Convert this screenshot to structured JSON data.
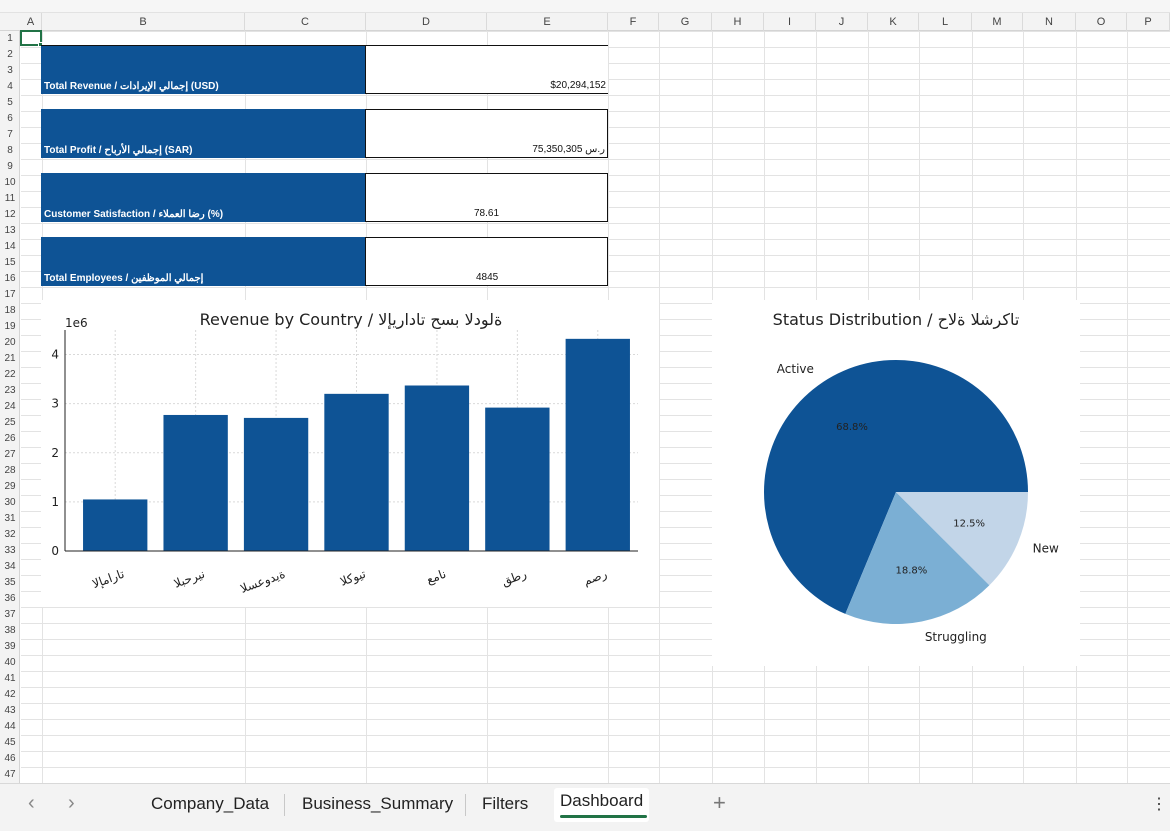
{
  "columns": [
    "A",
    "B",
    "C",
    "D",
    "E",
    "F",
    "G",
    "H",
    "I",
    "J",
    "K",
    "L",
    "M",
    "N",
    "O",
    "P"
  ],
  "rows": [
    "1",
    "2",
    "3",
    "4",
    "5",
    "6",
    "7",
    "8",
    "9",
    "10",
    "11",
    "12",
    "13",
    "14",
    "15",
    "16",
    "17",
    "18",
    "19",
    "20",
    "21",
    "22",
    "23",
    "24",
    "25",
    "26",
    "27",
    "28",
    "29",
    "30",
    "31",
    "32",
    "33",
    "34",
    "35",
    "36",
    "37",
    "38",
    "39",
    "40",
    "41",
    "42",
    "43",
    "44",
    "45",
    "46",
    "47"
  ],
  "kpis": {
    "revenue": {
      "label": "Total Revenue / إجمالي الإيرادات (USD)",
      "value": "$20,294,152"
    },
    "profit": {
      "label": "Total Profit / إجمالي الأرباح (SAR)",
      "value": "75,350,305 ر.س"
    },
    "satisfaction": {
      "label": "Customer Satisfaction / رضا العملاء (%)",
      "value": "78.61"
    },
    "employees": {
      "label": "Total Employees / إجمالي الموظفين",
      "value": "4845"
    }
  },
  "colors": {
    "primary": "#0e5395",
    "light_blue": "#7bafd4",
    "pale_blue": "#c2d5e8",
    "excel_green": "#217346"
  },
  "chart_data": [
    {
      "type": "bar",
      "title": "Revenue by Country / ةلودلا بسح تاداريإلا",
      "scale_label": "1e6",
      "categories": [
        "تارامإلا",
        "نيرحبلا",
        "ةيدوعسلا",
        "تيوكلا",
        "نامع",
        "رطق",
        "رصم"
      ],
      "values": [
        1050000,
        2770000,
        2710000,
        3200000,
        3370000,
        2920000,
        4320000
      ],
      "yticks": [
        "0",
        "1",
        "2",
        "3",
        "4"
      ],
      "ylim": [
        0,
        4500000
      ],
      "grid": true,
      "color": "#0e5395"
    },
    {
      "type": "pie",
      "title": "Status Distribution / تاكرشلا ةلاح",
      "labels": [
        "Active",
        "Struggling",
        "New"
      ],
      "values": [
        68.8,
        18.8,
        12.5
      ],
      "pct_labels": [
        "68.8%",
        "18.8%",
        "12.5%"
      ],
      "colors": [
        "#0e5395",
        "#7bafd4",
        "#c2d5e8"
      ]
    }
  ],
  "tabs": {
    "items": [
      "Company_Data",
      "Business_Summary",
      "Filters",
      "Dashboard"
    ],
    "active": "Dashboard",
    "prev_icon": "chevron-left-icon",
    "next_icon": "chevron-right-icon",
    "add_icon": "plus-icon",
    "more_icon": "more-vertical-icon"
  }
}
